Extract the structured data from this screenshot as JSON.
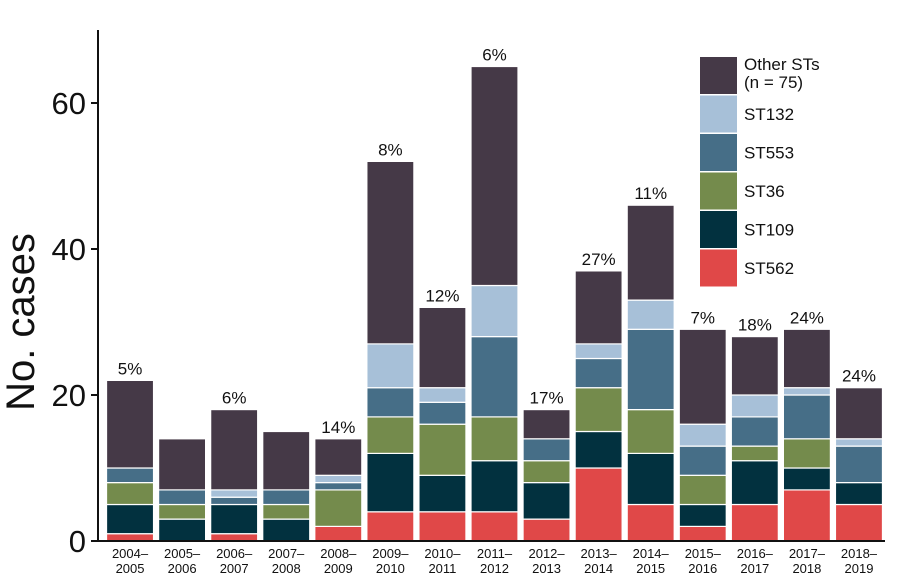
{
  "chart_data": {
    "type": "bar",
    "stacked": true,
    "ylabel": "No. cases",
    "xlabel": "",
    "ylim": [
      0,
      70
    ],
    "yticks": [
      0,
      20,
      40,
      60
    ],
    "categories": [
      [
        "2004–",
        "2005"
      ],
      [
        "2005–",
        "2006"
      ],
      [
        "2006–",
        "2007"
      ],
      [
        "2007–",
        "2008"
      ],
      [
        "2008–",
        "2009"
      ],
      [
        "2009–",
        "2010"
      ],
      [
        "2010–",
        "2011"
      ],
      [
        "2011–",
        "2012"
      ],
      [
        "2012–",
        "2013"
      ],
      [
        "2013–",
        "2014"
      ],
      [
        "2014–",
        "2015"
      ],
      [
        "2015–",
        "2016"
      ],
      [
        "2016–",
        "2017"
      ],
      [
        "2017–",
        "2018"
      ],
      [
        "2018–",
        "2019"
      ]
    ],
    "series": [
      {
        "name": "ST562",
        "color": "#e04848",
        "values": [
          1,
          0,
          1,
          0,
          2,
          4,
          4,
          4,
          3,
          10,
          5,
          2,
          5,
          7,
          5
        ]
      },
      {
        "name": "ST109",
        "color": "#02313f",
        "values": [
          4,
          3,
          4,
          3,
          0,
          8,
          5,
          7,
          5,
          5,
          7,
          3,
          6,
          3,
          3
        ]
      },
      {
        "name": "ST36",
        "color": "#748b4c",
        "values": [
          3,
          2,
          0,
          2,
          5,
          5,
          7,
          6,
          3,
          6,
          6,
          4,
          2,
          4,
          0
        ]
      },
      {
        "name": "ST553",
        "color": "#466e87",
        "values": [
          2,
          2,
          1,
          2,
          1,
          4,
          3,
          11,
          3,
          4,
          11,
          4,
          4,
          6,
          5
        ]
      },
      {
        "name": "ST132",
        "color": "#a7c0d8",
        "values": [
          0,
          0,
          1,
          0,
          1,
          6,
          2,
          7,
          0,
          2,
          4,
          3,
          3,
          1,
          1
        ]
      },
      {
        "name": "Other STs\n(n = 75)",
        "color": "#453947",
        "values": [
          12,
          7,
          11,
          8,
          5,
          25,
          11,
          30,
          4,
          10,
          13,
          13,
          8,
          8,
          7
        ]
      }
    ],
    "totals": [
      22,
      14,
      18,
      15,
      14,
      52,
      32,
      65,
      18,
      37,
      46,
      29,
      28,
      29,
      21
    ],
    "percent_labels": [
      "5%",
      "",
      "6%",
      "",
      "14%",
      "8%",
      "12%",
      "6%",
      "17%",
      "27%",
      "11%",
      "7%",
      "18%",
      "24%",
      "24%"
    ],
    "legend": {
      "position": "top-right",
      "entries": [
        {
          "label_lines": [
            "Other STs",
            "(n = 75)"
          ],
          "color": "#453947"
        },
        {
          "label_lines": [
            "ST132"
          ],
          "color": "#a7c0d8"
        },
        {
          "label_lines": [
            "ST553"
          ],
          "color": "#466e87"
        },
        {
          "label_lines": [
            "ST36"
          ],
          "color": "#748b4c"
        },
        {
          "label_lines": [
            "ST109"
          ],
          "color": "#02313f"
        },
        {
          "label_lines": [
            "ST562"
          ],
          "color": "#e04848"
        }
      ]
    },
    "grid": false
  }
}
